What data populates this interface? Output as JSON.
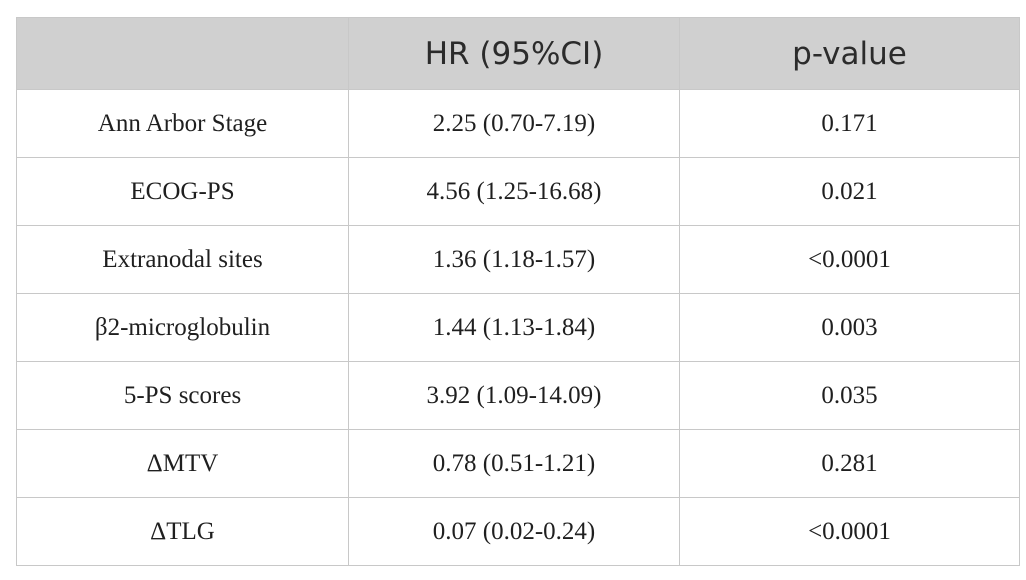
{
  "table": {
    "headers": [
      "",
      "HR (95%CI)",
      "p-value"
    ],
    "rows": [
      {
        "variable": "Ann Arbor Stage",
        "hr": "2.25 (0.70-7.19)",
        "p": "0.171"
      },
      {
        "variable": "ECOG-PS",
        "hr": "4.56 (1.25-16.68)",
        "p": "0.021"
      },
      {
        "variable": "Extranodal sites",
        "hr": "1.36 (1.18-1.57)",
        "p": "<0.0001"
      },
      {
        "variable": "β2-microglobulin",
        "hr": "1.44 (1.13-1.84)",
        "p": "0.003"
      },
      {
        "variable": "5-PS scores",
        "hr": "3.92 (1.09-14.09)",
        "p": "0.035"
      },
      {
        "variable": "ΔMTV",
        "hr": "0.78 (0.51-1.21)",
        "p": "0.281"
      },
      {
        "variable": "ΔTLG",
        "hr": "0.07 (0.02-0.24)",
        "p": "<0.0001"
      }
    ]
  }
}
